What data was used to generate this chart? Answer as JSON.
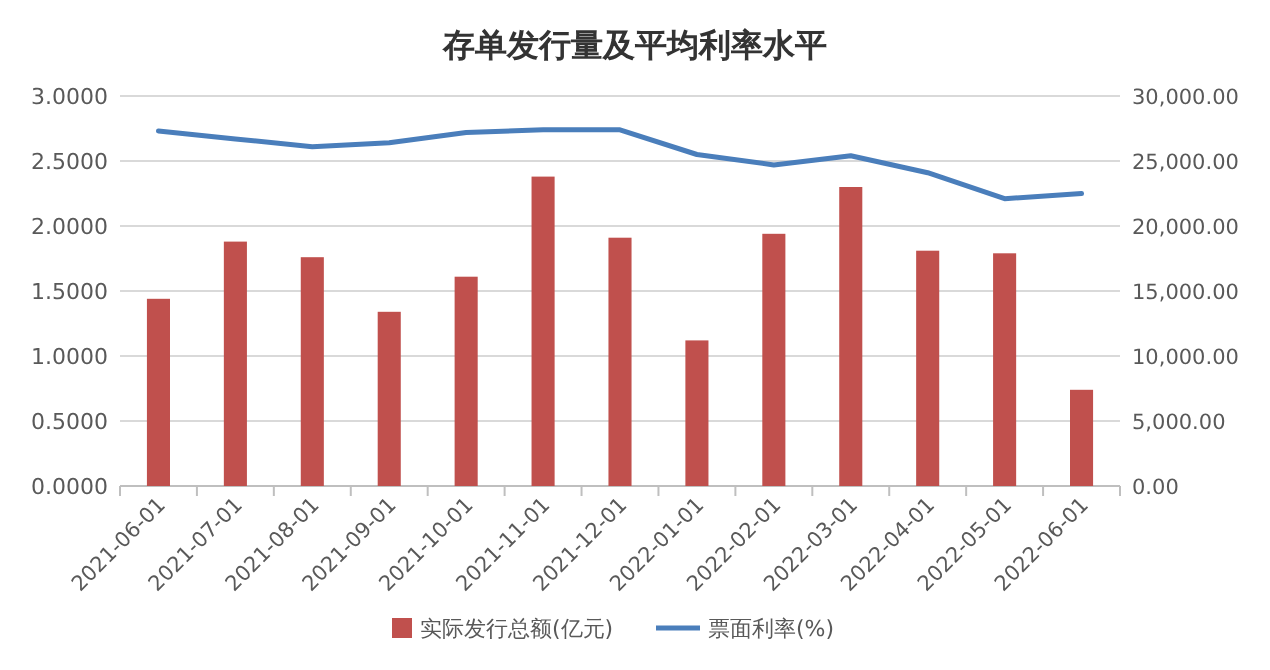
{
  "chart_data": {
    "type": "bar",
    "title": "存单发行量及平均利率水平",
    "categories": [
      "2021-06-01",
      "2021-07-01",
      "2021-08-01",
      "2021-09-01",
      "2021-10-01",
      "2021-11-01",
      "2021-12-01",
      "2022-01-01",
      "2022-02-01",
      "2022-03-01",
      "2022-04-01",
      "2022-05-01",
      "2022-06-01"
    ],
    "series": [
      {
        "name": "实际发行总额(亿元)",
        "axis": "y2",
        "color": "#c0504d",
        "values": [
          14400,
          18800,
          17600,
          13400,
          16100,
          23800,
          19100,
          11200,
          19400,
          23000,
          18100,
          17900,
          7400
        ]
      },
      {
        "name": "票面利率(%)",
        "type": "line",
        "color": "#4a7ebb",
        "values": [
          2.73,
          2.67,
          2.61,
          2.64,
          2.72,
          2.74,
          2.74,
          2.55,
          2.47,
          2.54,
          2.41,
          2.21,
          2.25
        ]
      }
    ],
    "ylim": [
      0,
      3
    ],
    "yticks": [
      {
        "value": 0,
        "label": "0.0000"
      },
      {
        "value": 0.5,
        "label": "0.5000"
      },
      {
        "value": 1,
        "label": "1.0000"
      },
      {
        "value": 1.5,
        "label": "1.5000"
      },
      {
        "value": 2,
        "label": "2.0000"
      },
      {
        "value": 2.5,
        "label": "2.5000"
      },
      {
        "value": 3,
        "label": "3.0000"
      }
    ],
    "y2lim": [
      0,
      30000
    ],
    "y2ticks": [
      {
        "value": 0,
        "label": "0.00"
      },
      {
        "value": 5000,
        "label": "5,000.00"
      },
      {
        "value": 10000,
        "label": "10,000.00"
      },
      {
        "value": 15000,
        "label": "15,000.00"
      },
      {
        "value": 20000,
        "label": "20,000.00"
      },
      {
        "value": 25000,
        "label": "25,000.00"
      },
      {
        "value": 30000,
        "label": "30,000.00"
      }
    ],
    "grid": "y",
    "legend": "bottom"
  }
}
